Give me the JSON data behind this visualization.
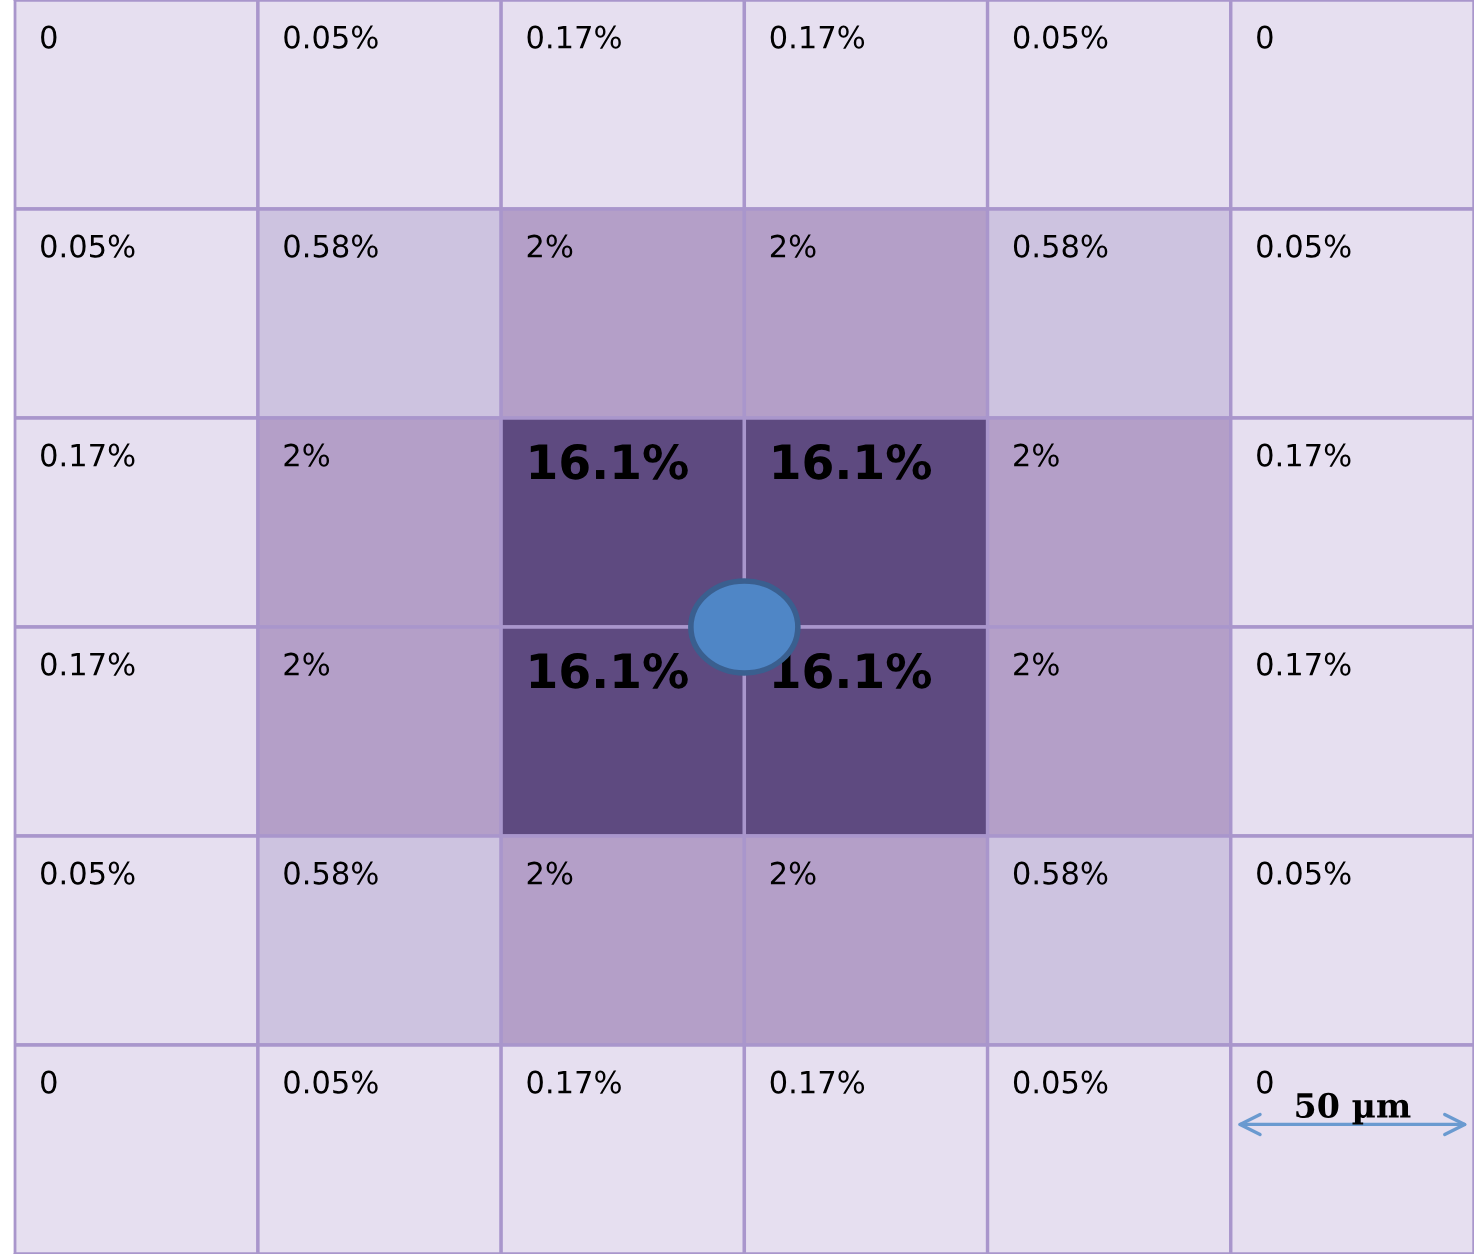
{
  "chart_data": {
    "type": "heatmap",
    "categories": [
      null,
      null,
      null,
      null,
      null,
      null
    ],
    "y_categories": [
      null,
      null,
      null,
      null,
      null,
      null
    ],
    "cells": [
      [
        0,
        0.05,
        0.17,
        0.17,
        0.05,
        0
      ],
      [
        0.05,
        0.58,
        2,
        2,
        0.58,
        0.05
      ],
      [
        0.17,
        2,
        16.1,
        16.1,
        2,
        0.17
      ],
      [
        0.17,
        2,
        16.1,
        16.1,
        2,
        0.17
      ],
      [
        0.05,
        0.58,
        2,
        2,
        0.58,
        0.05
      ],
      [
        0,
        0.05,
        0.17,
        0.17,
        0.05,
        0
      ]
    ],
    "cell_labels": [
      [
        "0",
        "0.05%",
        "0.17%",
        "0.17%",
        "0.05%",
        "0"
      ],
      [
        "0.05%",
        "0.58%",
        "2%",
        "2%",
        "0.58%",
        "0.05%"
      ],
      [
        "0.17%",
        "2%",
        "16.1%",
        "16.1%",
        "2%",
        "0.17%"
      ],
      [
        "0.17%",
        "2%",
        "16.1%",
        "16.1%",
        "2%",
        "0.17%"
      ],
      [
        "0.05%",
        "0.58%",
        "2%",
        "2%",
        "0.58%",
        "0.05%"
      ],
      [
        "0",
        "0.05%",
        "0.17%",
        "0.17%",
        "0.05%",
        "0"
      ]
    ],
    "annotations": [
      "50 µm"
    ]
  }
}
